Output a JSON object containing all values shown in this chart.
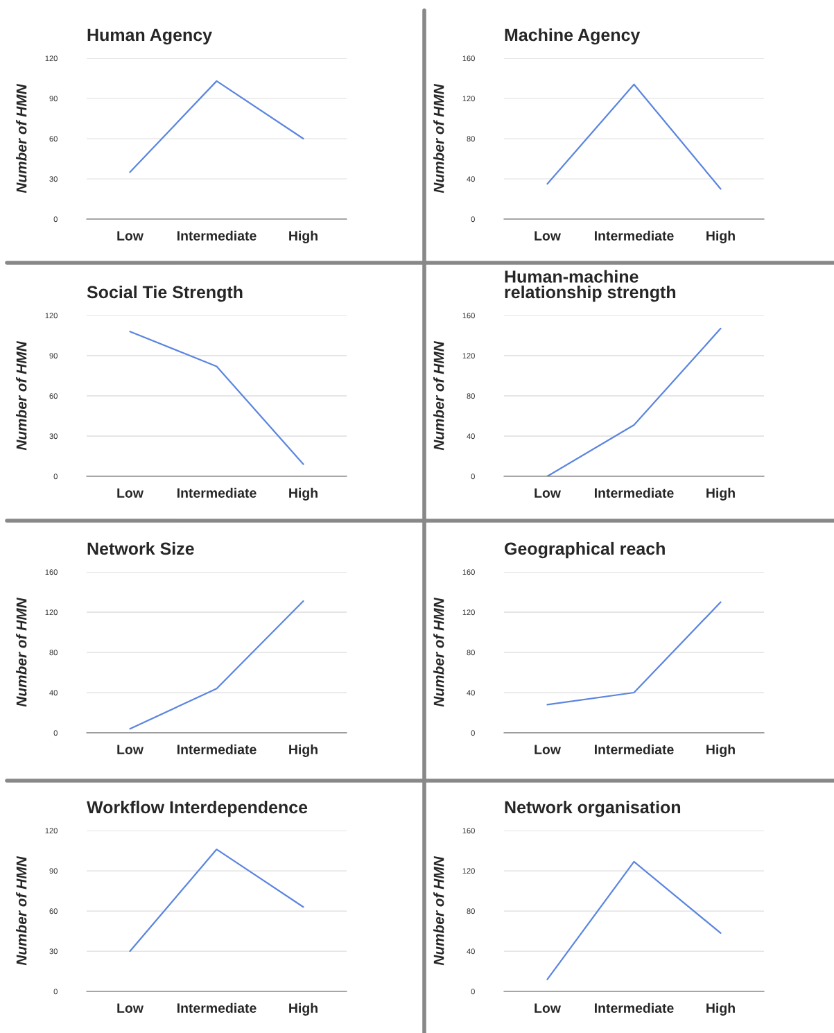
{
  "chart_data": [
    {
      "type": "line",
      "title": "Human Agency",
      "ylabel": "Number of HMN",
      "categories": [
        "Low",
        "Intermediate",
        "High"
      ],
      "series": [
        {
          "color": "#5b85e0",
          "values": [
            35,
            103,
            60
          ]
        }
      ],
      "ylim": [
        0,
        120
      ],
      "yticks": [
        0,
        30,
        60,
        90,
        120
      ],
      "grid": "y"
    },
    {
      "type": "line",
      "title": "Machine Agency",
      "ylabel": "Number of HMN",
      "categories": [
        "Low",
        "Intermediate",
        "High"
      ],
      "series": [
        {
          "color": "#5b85e0",
          "values": [
            35,
            134,
            30
          ]
        }
      ],
      "ylim": [
        0,
        160
      ],
      "yticks": [
        0,
        40,
        80,
        120,
        160
      ],
      "grid": "y"
    },
    {
      "type": "line",
      "title": "Social Tie Strength",
      "ylabel": "Number of HMN",
      "categories": [
        "Low",
        "Intermediate",
        "High"
      ],
      "series": [
        {
          "color": "#5b85e0",
          "values": [
            108,
            82,
            9
          ]
        }
      ],
      "ylim": [
        0,
        120
      ],
      "yticks": [
        0,
        30,
        60,
        90,
        120
      ],
      "grid": "y"
    },
    {
      "type": "line",
      "title": "Human-machine\nrelationship strength",
      "ylabel": "Number of HMN",
      "categories": [
        "Low",
        "Intermediate",
        "High"
      ],
      "series": [
        {
          "color": "#5b85e0",
          "values": [
            0,
            51,
            147
          ]
        }
      ],
      "ylim": [
        0,
        160
      ],
      "yticks": [
        0,
        40,
        80,
        120,
        160
      ],
      "grid": "y"
    },
    {
      "type": "line",
      "title": "Network Size",
      "ylabel": "Number of HMN",
      "categories": [
        "Low",
        "Intermediate",
        "High"
      ],
      "series": [
        {
          "color": "#5b85e0",
          "values": [
            4,
            44,
            131
          ]
        }
      ],
      "ylim": [
        0,
        160
      ],
      "yticks": [
        0,
        40,
        80,
        120,
        160
      ],
      "grid": "y"
    },
    {
      "type": "line",
      "title": "Geographical reach",
      "ylabel": "Number of HMN",
      "categories": [
        "Low",
        "Intermediate",
        "High"
      ],
      "series": [
        {
          "color": "#5b85e0",
          "values": [
            28,
            40,
            130
          ]
        }
      ],
      "ylim": [
        0,
        160
      ],
      "yticks": [
        0,
        40,
        80,
        120,
        160
      ],
      "grid": "y"
    },
    {
      "type": "line",
      "title": "Workflow Interdependence",
      "ylabel": "Number of HMN",
      "categories": [
        "Low",
        "Intermediate",
        "High"
      ],
      "series": [
        {
          "color": "#5b85e0",
          "values": [
            30,
            106,
            63
          ]
        }
      ],
      "ylim": [
        0,
        120
      ],
      "yticks": [
        0,
        30,
        60,
        90,
        120
      ],
      "grid": "y"
    },
    {
      "type": "line",
      "title": "Network organisation",
      "ylabel": "Number of HMN",
      "categories": [
        "Low",
        "Intermediate",
        "High"
      ],
      "series": [
        {
          "color": "#5b85e0",
          "values": [
            12,
            129,
            58
          ]
        }
      ],
      "ylim": [
        0,
        160
      ],
      "yticks": [
        0,
        40,
        80,
        120,
        160
      ],
      "grid": "y"
    }
  ]
}
